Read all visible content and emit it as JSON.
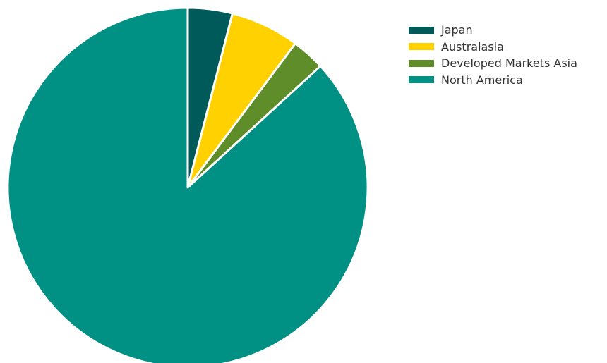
{
  "chart_data": {
    "type": "pie",
    "categories": [
      "Japan",
      "Australasia",
      "Developed Markets Asia",
      "North America"
    ],
    "values": [
      4.0,
      6.2,
      3.0,
      86.8
    ],
    "colors": [
      "#005a5a",
      "#ffd100",
      "#5e8d2a",
      "#009084"
    ],
    "legend": "right",
    "start_angle": "top",
    "direction": "clockwise"
  },
  "legend": {
    "items": [
      {
        "label": "Japan",
        "color": "#005a5a"
      },
      {
        "label": "Australasia",
        "color": "#ffd100"
      },
      {
        "label": "Developed Markets Asia",
        "color": "#5e8d2a"
      },
      {
        "label": "North America",
        "color": "#009084"
      }
    ]
  }
}
